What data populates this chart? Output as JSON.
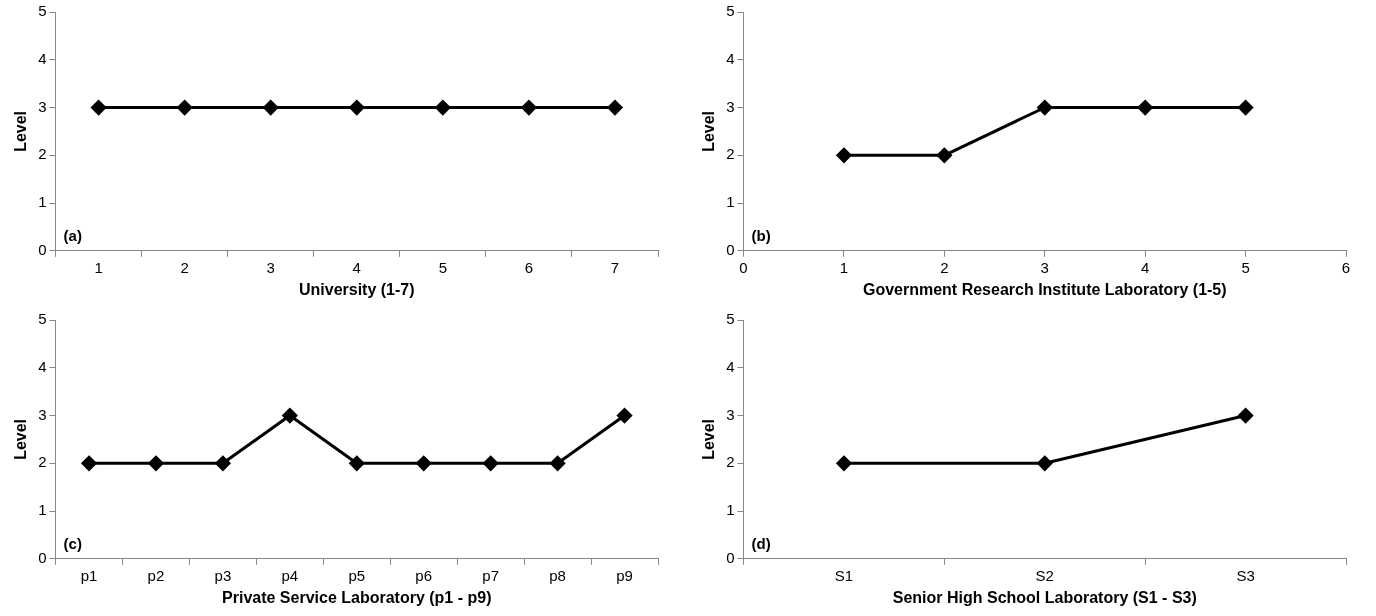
{
  "chart_data": [
    {
      "type": "line",
      "categories": [
        "1",
        "2",
        "3",
        "4",
        "5",
        "6",
        "7"
      ],
      "series": [
        {
          "color": "#000000",
          "values": [
            3,
            3,
            3,
            3,
            3,
            3,
            3
          ]
        }
      ],
      "xlabel": "University (1-7)",
      "ylabel": "Level",
      "ylim": [
        0,
        5
      ],
      "yticks": [
        0,
        1,
        2,
        3,
        4,
        5
      ],
      "annotations": [
        "(a)"
      ],
      "grid": false,
      "legend": false,
      "marker": "diamond",
      "line_style": "solid"
    },
    {
      "type": "line",
      "x": [
        1,
        2,
        3,
        4,
        5
      ],
      "series": [
        {
          "color": "#000000",
          "values": [
            2,
            2,
            3,
            3,
            3
          ]
        }
      ],
      "xlabel": "Government Research Institute Laboratory (1-5)",
      "ylabel": "Level",
      "xlim": [
        0,
        6
      ],
      "xticks": [
        0,
        1,
        2,
        3,
        4,
        5,
        6
      ],
      "ylim": [
        0,
        5
      ],
      "yticks": [
        0,
        1,
        2,
        3,
        4,
        5
      ],
      "annotations": [
        "(b)"
      ],
      "grid": false,
      "legend": false,
      "marker": "diamond",
      "line_style": "solid"
    },
    {
      "type": "line",
      "categories": [
        "p1",
        "p2",
        "p3",
        "p4",
        "p5",
        "p6",
        "p7",
        "p8",
        "p9"
      ],
      "series": [
        {
          "color": "#000000",
          "values": [
            2,
            2,
            2,
            3,
            2,
            2,
            2,
            2,
            3
          ]
        }
      ],
      "xlabel": "Private Service Laboratory (p1 - p9)",
      "ylabel": "Level",
      "ylim": [
        0,
        5
      ],
      "yticks": [
        0,
        1,
        2,
        3,
        4,
        5
      ],
      "annotations": [
        "(c)"
      ],
      "grid": false,
      "legend": false,
      "marker": "diamond",
      "line_style": "solid"
    },
    {
      "type": "line",
      "categories": [
        "S1",
        "S2",
        "S3"
      ],
      "series": [
        {
          "color": "#000000",
          "values": [
            2,
            2,
            3
          ]
        }
      ],
      "xlabel": "Senior High School Laboratory (S1 - S3)",
      "ylabel": "Level",
      "ylim": [
        0,
        5
      ],
      "yticks": [
        0,
        1,
        2,
        3,
        4,
        5
      ],
      "annotations": [
        "(d)"
      ],
      "grid": false,
      "legend": false,
      "marker": "diamond",
      "line_style": "solid"
    }
  ]
}
